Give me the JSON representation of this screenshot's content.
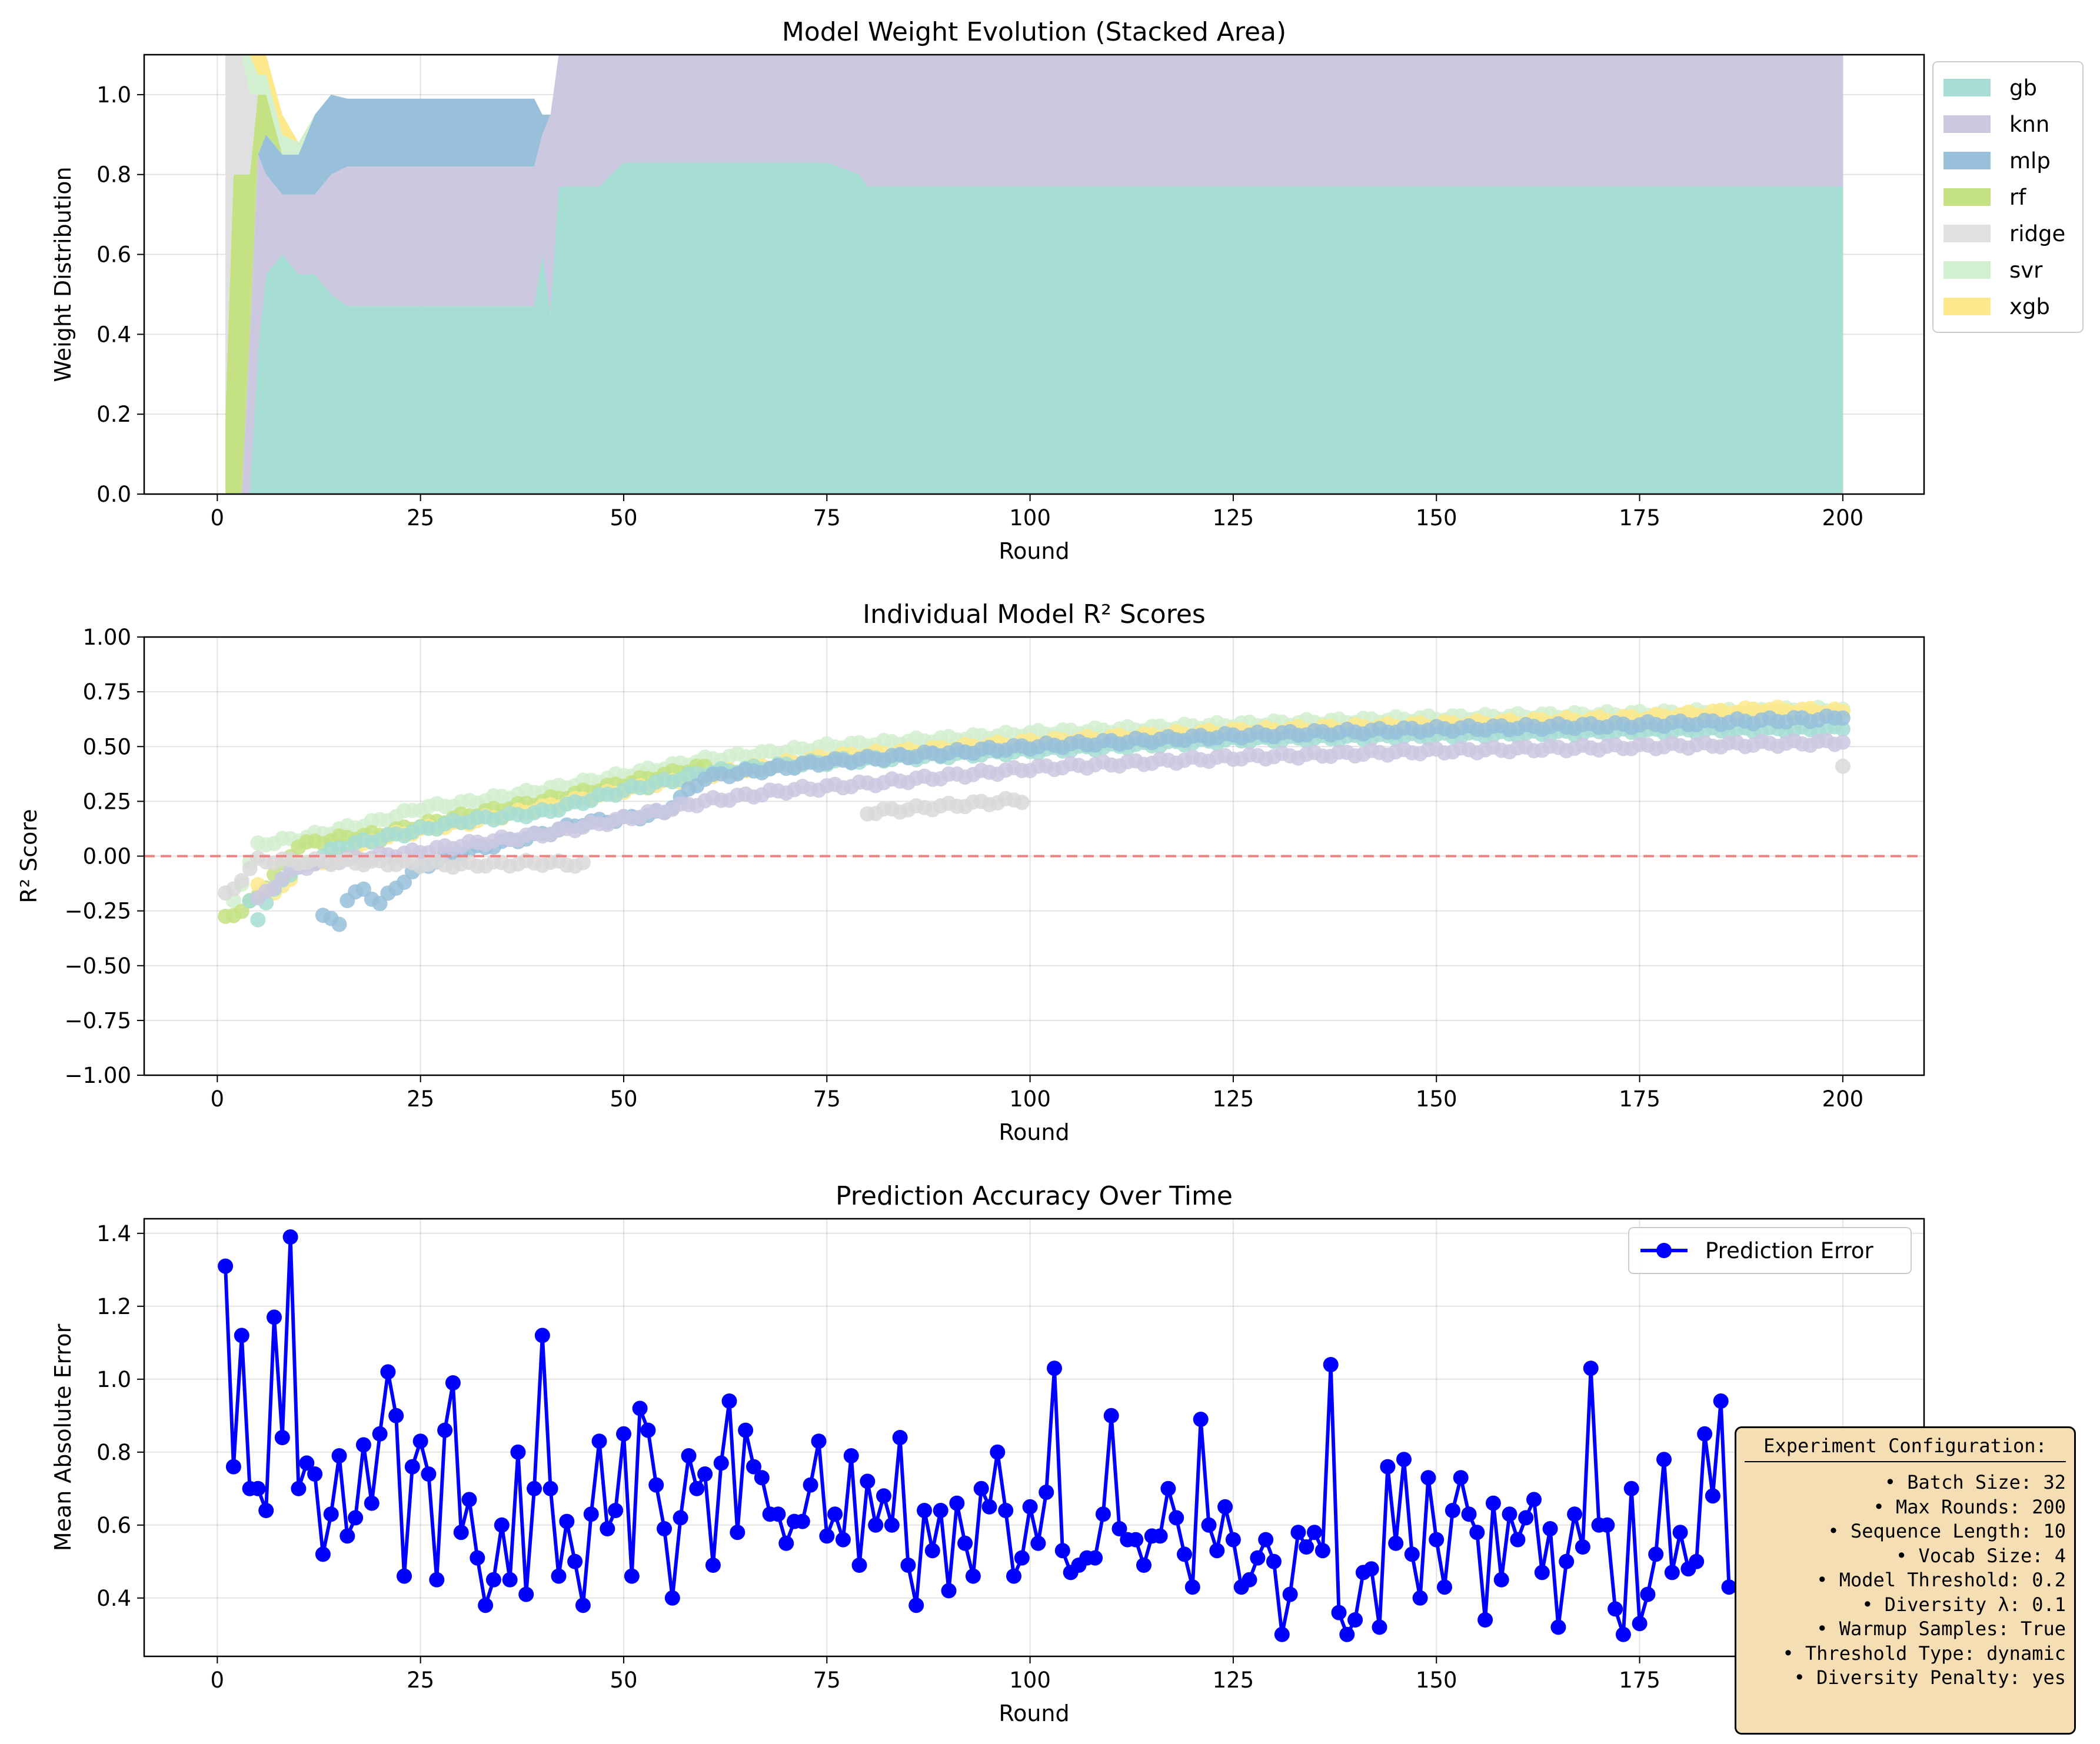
{
  "chart_data": [
    {
      "type": "area",
      "title": "Model Weight Evolution (Stacked Area)",
      "xlabel": "Round",
      "ylabel": "Weight Distribution",
      "xlim": [
        -9,
        210
      ],
      "ylim": [
        0,
        1.1
      ],
      "xticks": [
        0,
        25,
        50,
        75,
        100,
        125,
        150,
        175,
        200
      ],
      "yticks": [
        0.0,
        0.2,
        0.4,
        0.6,
        0.8,
        1.0
      ],
      "grid": true,
      "legend_position": "outside-right",
      "series": [
        {
          "name": "gb",
          "color": "#a6ddd4"
        },
        {
          "name": "knn",
          "color": "#cbc8e0"
        },
        {
          "name": "mlp",
          "color": "#98c0db"
        },
        {
          "name": "rf",
          "color": "#c4e283"
        },
        {
          "name": "ridge",
          "color": "#e0e0e0"
        },
        {
          "name": "svr",
          "color": "#d2efcf"
        },
        {
          "name": "xgb",
          "color": "#fde98c"
        }
      ],
      "x_breakpoints": [
        1,
        2,
        3,
        4,
        5,
        6,
        8,
        10,
        12,
        14,
        16,
        20,
        25,
        30,
        35,
        39,
        40,
        41,
        42,
        45,
        47,
        50,
        60,
        75,
        79,
        80,
        100,
        150,
        200
      ],
      "stack_values": {
        "gb": [
          0,
          0,
          0,
          0,
          0.35,
          0.55,
          0.6,
          0.55,
          0.55,
          0.5,
          0.47,
          0.47,
          0.47,
          0.47,
          0.47,
          0.47,
          0.6,
          0.45,
          0.77,
          0.77,
          0.77,
          0.83,
          0.83,
          0.83,
          0.8,
          0.77,
          0.77,
          0.77,
          0.77
        ],
        "knn": [
          0,
          0,
          0,
          0.4,
          0.5,
          0.25,
          0.15,
          0.2,
          0.2,
          0.3,
          0.35,
          0.35,
          0.35,
          0.35,
          0.35,
          0.35,
          0.3,
          0.5,
          0.33,
          0.33,
          0.33,
          0.27,
          0.27,
          0.27,
          0.3,
          0.33,
          0.33,
          0.33,
          0.33
        ],
        "mlp": [
          0,
          0,
          0,
          0,
          0,
          0.1,
          0.1,
          0.1,
          0.2,
          0.2,
          0.17,
          0.17,
          0.17,
          0.17,
          0.17,
          0.17,
          0.05,
          0,
          0,
          0,
          0,
          0,
          0,
          0,
          0,
          0,
          0,
          0,
          0
        ],
        "rf": [
          0.2,
          0.8,
          0.8,
          0.4,
          0.15,
          0.1,
          0,
          0,
          0,
          0,
          0,
          0,
          0,
          0,
          0,
          0,
          0,
          0,
          0,
          0,
          0,
          0,
          0,
          0,
          0,
          0,
          0,
          0,
          0
        ],
        "ridge": [
          0.9,
          0.3,
          0.3,
          0.2,
          0,
          0,
          0,
          0,
          0,
          0,
          0,
          0,
          0,
          0,
          0,
          0,
          0,
          0,
          0,
          0,
          0,
          0,
          0,
          0,
          0,
          0,
          0,
          0,
          0
        ],
        "svr": [
          0,
          0,
          0,
          0.1,
          0.05,
          0.05,
          0.05,
          0.03,
          0,
          0,
          0,
          0,
          0,
          0,
          0,
          0,
          0,
          0,
          0,
          0,
          0,
          0,
          0,
          0,
          0,
          0,
          0,
          0,
          0
        ],
        "xgb": [
          0,
          0,
          0,
          0,
          0.05,
          0.05,
          0.05,
          0,
          0,
          0,
          0,
          0,
          0,
          0,
          0,
          0,
          0,
          0,
          0,
          0,
          0,
          0,
          0,
          0,
          0,
          0,
          0,
          0,
          0
        ]
      }
    },
    {
      "type": "scatter",
      "title": "Individual Model R² Scores",
      "xlabel": "Round",
      "ylabel": "R² Score",
      "xlim": [
        -9,
        210
      ],
      "ylim": [
        -1.0,
        1.0
      ],
      "xticks": [
        0,
        25,
        50,
        75,
        100,
        125,
        150,
        175,
        200
      ],
      "yticks": [
        -1.0,
        -0.75,
        -0.5,
        -0.25,
        0.0,
        0.25,
        0.5,
        0.75,
        1.0
      ],
      "yticklabels": [
        "−1.00",
        "−0.75",
        "−0.50",
        "−0.25",
        "0.00",
        "0.25",
        "0.50",
        "0.75",
        "1.00"
      ],
      "grid": true,
      "reference_line": {
        "y": 0,
        "style": "dashed",
        "color": "#f08080"
      },
      "series": [
        {
          "color": "#d2efcf",
          "x": [
            2,
            5,
            6,
            10,
            15,
            20,
            25,
            30,
            40,
            50,
            60,
            75,
            100,
            125,
            150,
            175,
            200
          ],
          "y": [
            -0.2,
            0.05,
            0.06,
            0.08,
            0.12,
            0.16,
            0.22,
            0.24,
            0.3,
            0.37,
            0.44,
            0.5,
            0.56,
            0.6,
            0.63,
            0.65,
            0.67
          ]
        },
        {
          "color": "#c4e283",
          "x": [
            1,
            2,
            3,
            5,
            10,
            15,
            20,
            30,
            40,
            50,
            60
          ],
          "y": [
            -0.28,
            -0.26,
            -0.25,
            -0.18,
            0.05,
            0.08,
            0.1,
            0.18,
            0.25,
            0.33,
            0.41
          ]
        },
        {
          "color": "#fde98c",
          "x": [
            5,
            7,
            10,
            15,
            20,
            25,
            30,
            40,
            50,
            60,
            75,
            100,
            125,
            150,
            175,
            190,
            200
          ],
          "y": [
            -0.12,
            -0.18,
            -0.05,
            0.0,
            0.08,
            0.12,
            0.15,
            0.22,
            0.3,
            0.37,
            0.45,
            0.52,
            0.57,
            0.6,
            0.63,
            0.67,
            0.66
          ]
        },
        {
          "color": "#a6ddd4",
          "x": [
            4,
            5,
            8,
            12,
            15,
            20,
            25,
            30,
            40,
            50,
            60,
            75,
            100,
            125,
            150,
            175,
            200
          ],
          "y": [
            -0.2,
            -0.28,
            -0.1,
            -0.02,
            0.04,
            0.08,
            0.12,
            0.16,
            0.2,
            0.3,
            0.38,
            0.43,
            0.48,
            0.53,
            0.55,
            0.57,
            0.58
          ]
        },
        {
          "color": "#98c0db",
          "x": [
            13,
            15,
            16,
            18,
            20,
            22,
            25,
            30,
            40,
            45,
            50,
            55,
            60,
            75,
            100,
            125,
            150,
            175,
            200
          ],
          "y": [
            -0.28,
            -0.3,
            -0.2,
            -0.15,
            -0.22,
            -0.14,
            -0.05,
            0.02,
            0.1,
            0.15,
            0.17,
            0.2,
            0.36,
            0.43,
            0.5,
            0.55,
            0.58,
            0.6,
            0.63
          ]
        },
        {
          "color": "#cbc8e0",
          "x": [
            5,
            8,
            10,
            15,
            20,
            25,
            30,
            40,
            50,
            60,
            70,
            80,
            100,
            125,
            150,
            175,
            200
          ],
          "y": [
            -0.2,
            -0.1,
            -0.05,
            -0.02,
            0.0,
            0.02,
            0.05,
            0.1,
            0.17,
            0.25,
            0.3,
            0.33,
            0.4,
            0.45,
            0.48,
            0.5,
            0.52
          ]
        },
        {
          "color": "#d9d9d9",
          "x": [
            1,
            2,
            3,
            5,
            20,
            30,
            40,
            46,
            80,
            100,
            125,
            150,
            175,
            200
          ],
          "y": [
            -0.18,
            -0.15,
            -0.1,
            -0.02,
            -0.03,
            -0.04,
            -0.03,
            -0.04,
            0.2,
            0.26,
            0.32,
            0.36,
            0.38,
            0.41
          ]
        }
      ]
    },
    {
      "type": "line",
      "title": "Prediction Accuracy Over Time",
      "xlabel": "Round",
      "ylabel": "Mean Absolute Error",
      "xlim": [
        -9,
        210
      ],
      "ylim": [
        0.24,
        1.44
      ],
      "xticks": [
        0,
        25,
        50,
        75,
        100,
        125,
        150,
        175,
        200
      ],
      "yticks": [
        0.4,
        0.6,
        0.8,
        1.0,
        1.2,
        1.4
      ],
      "grid": true,
      "legend_position": "top-right",
      "series": [
        {
          "name": "Prediction Error",
          "color": "#0000ff",
          "x_start": 1,
          "y": [
            1.31,
            0.76,
            1.12,
            0.7,
            0.7,
            0.64,
            1.17,
            0.84,
            1.39,
            0.7,
            0.77,
            0.74,
            0.52,
            0.63,
            0.79,
            0.57,
            0.62,
            0.82,
            0.66,
            0.85,
            1.02,
            0.9,
            0.46,
            0.76,
            0.83,
            0.74,
            0.45,
            0.86,
            0.99,
            0.58,
            0.67,
            0.51,
            0.38,
            0.45,
            0.6,
            0.45,
            0.8,
            0.41,
            0.7,
            1.12,
            0.7,
            0.46,
            0.61,
            0.5,
            0.38,
            0.63,
            0.83,
            0.59,
            0.64,
            0.85,
            0.46,
            0.92,
            0.86,
            0.71,
            0.59,
            0.4,
            0.62,
            0.79,
            0.7,
            0.74,
            0.49,
            0.77,
            0.94,
            0.58,
            0.86,
            0.76,
            0.73,
            0.63,
            0.63,
            0.55,
            0.61,
            0.61,
            0.71,
            0.83,
            0.57,
            0.63,
            0.56,
            0.79,
            0.49,
            0.72,
            0.6,
            0.68,
            0.6,
            0.84,
            0.49,
            0.38,
            0.64,
            0.53,
            0.64,
            0.42,
            0.66,
            0.55,
            0.46,
            0.7,
            0.65,
            0.8,
            0.64,
            0.46,
            0.51,
            0.65,
            0.55,
            0.69,
            1.03,
            0.53,
            0.47,
            0.49,
            0.51,
            0.51,
            0.63,
            0.9,
            0.59,
            0.56,
            0.56,
            0.49,
            0.57,
            0.57,
            0.7,
            0.62,
            0.52,
            0.43,
            0.89,
            0.6,
            0.53,
            0.65,
            0.56,
            0.43,
            0.45,
            0.51,
            0.56,
            0.5,
            0.3,
            0.41,
            0.58,
            0.54,
            0.58,
            0.53,
            1.04,
            0.36,
            0.3,
            0.34,
            0.47,
            0.48,
            0.32,
            0.76,
            0.55,
            0.78,
            0.52,
            0.4,
            0.73,
            0.56,
            0.43,
            0.64,
            0.73,
            0.63,
            0.58,
            0.34,
            0.66,
            0.45,
            0.63,
            0.56,
            0.62,
            0.67,
            0.47,
            0.59,
            0.32,
            0.5,
            0.63,
            0.54,
            1.03,
            0.6,
            0.6,
            0.37,
            0.3,
            0.7,
            0.33,
            0.41,
            0.52,
            0.78,
            0.47,
            0.58,
            0.48,
            0.5,
            0.85,
            0.68,
            0.94,
            0.43
          ]
        }
      ]
    }
  ],
  "config_box": {
    "title": "Experiment Configuration:",
    "lines": [
      "• Batch Size: 32",
      "• Max Rounds: 200",
      "• Sequence Length: 10",
      "• Vocab Size: 4",
      "• Model Threshold: 0.2",
      "• Diversity λ: 0.1",
      "• Warmup Samples: True",
      "• Threshold Type: dynamic",
      "• Diversity Penalty: yes"
    ]
  }
}
